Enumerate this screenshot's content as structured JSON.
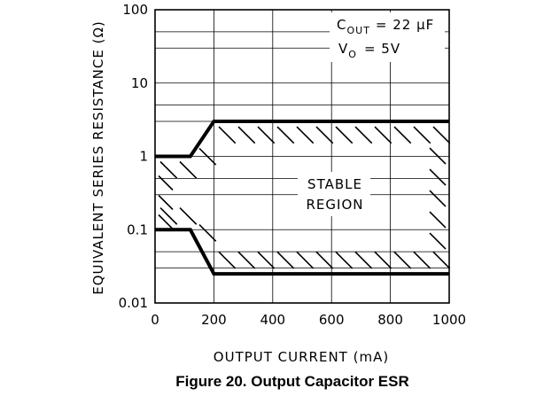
{
  "chart_data": {
    "type": "area",
    "title": "Figure 20. Output Capacitor ESR",
    "xlabel": "OUTPUT CURRENT (mA)",
    "ylabel": "EQUIVALENT SERIES RESISTANCE (Ω)",
    "xlim": [
      0,
      1000
    ],
    "ylim": [
      0.01,
      100
    ],
    "yscale": "log",
    "xticks": [
      0,
      200,
      400,
      600,
      800,
      1000
    ],
    "xtick_labels": [
      "0",
      "200",
      "400",
      "600",
      "800",
      "1000"
    ],
    "yticks": [
      0.01,
      0.1,
      1,
      10,
      100
    ],
    "ytick_labels": [
      "0.01",
      "0.1",
      "1",
      "10",
      "100"
    ],
    "grid": true,
    "series": [
      {
        "x": [
          0,
          120,
          200,
          1000
        ],
        "y": [
          1,
          1,
          3,
          3
        ]
      },
      {
        "x": [
          0,
          120,
          200,
          1000
        ],
        "y": [
          0.1,
          0.1,
          0.025,
          0.025
        ]
      }
    ],
    "annotations": {
      "cond1_main": "C",
      "cond1_sub": "OUT",
      "cond1_rest": "= 22 µF",
      "cond2_main": "V",
      "cond2_sub": "O",
      "cond2_rest": "= 5V",
      "region_line1": "STABLE",
      "region_line2": "REGION"
    }
  }
}
